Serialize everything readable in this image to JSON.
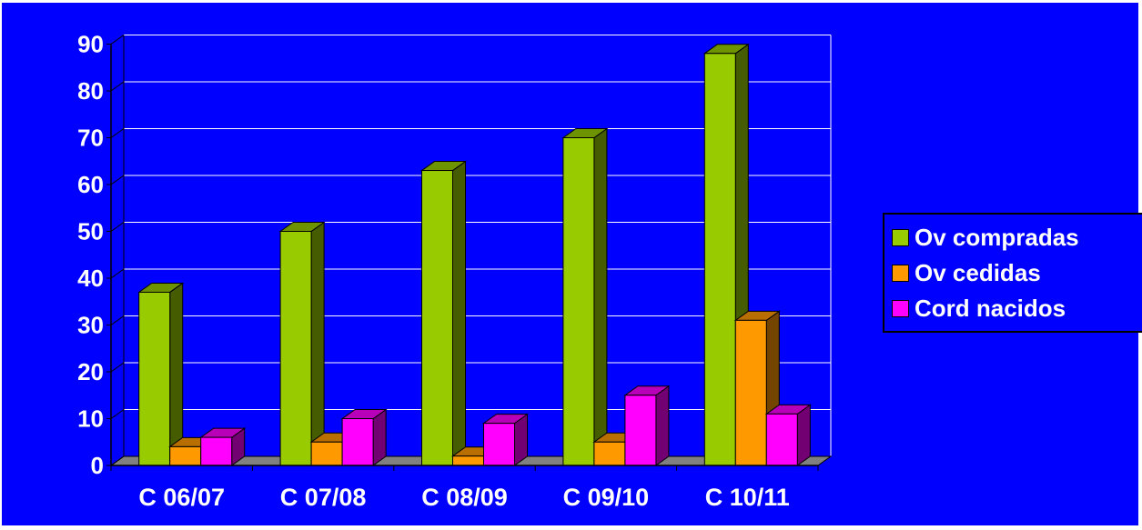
{
  "chart_data": {
    "type": "bar",
    "categories": [
      "C 06/07",
      "C 07/08",
      "C 08/09",
      "C 09/10",
      "C 10/11"
    ],
    "series": [
      {
        "name": "Ov compradas",
        "values": [
          37,
          50,
          63,
          70,
          88
        ],
        "color": "#99cc00"
      },
      {
        "name": "Ov cedidas",
        "values": [
          4,
          5,
          2,
          5,
          31
        ],
        "color": "#ff9900"
      },
      {
        "name": "Cord nacidos",
        "values": [
          6,
          10,
          9,
          15,
          11
        ],
        "color": "#ff00ff"
      }
    ],
    "ylim": [
      0,
      90
    ],
    "yticks": [
      "0",
      "10",
      "20",
      "30",
      "40",
      "50",
      "60",
      "70",
      "80",
      "90"
    ],
    "grid": true,
    "legend_position": "right",
    "three_d": true,
    "background_color": "#0000ff",
    "gridline_color": "#ffffff",
    "text_color": "#ffffff"
  }
}
